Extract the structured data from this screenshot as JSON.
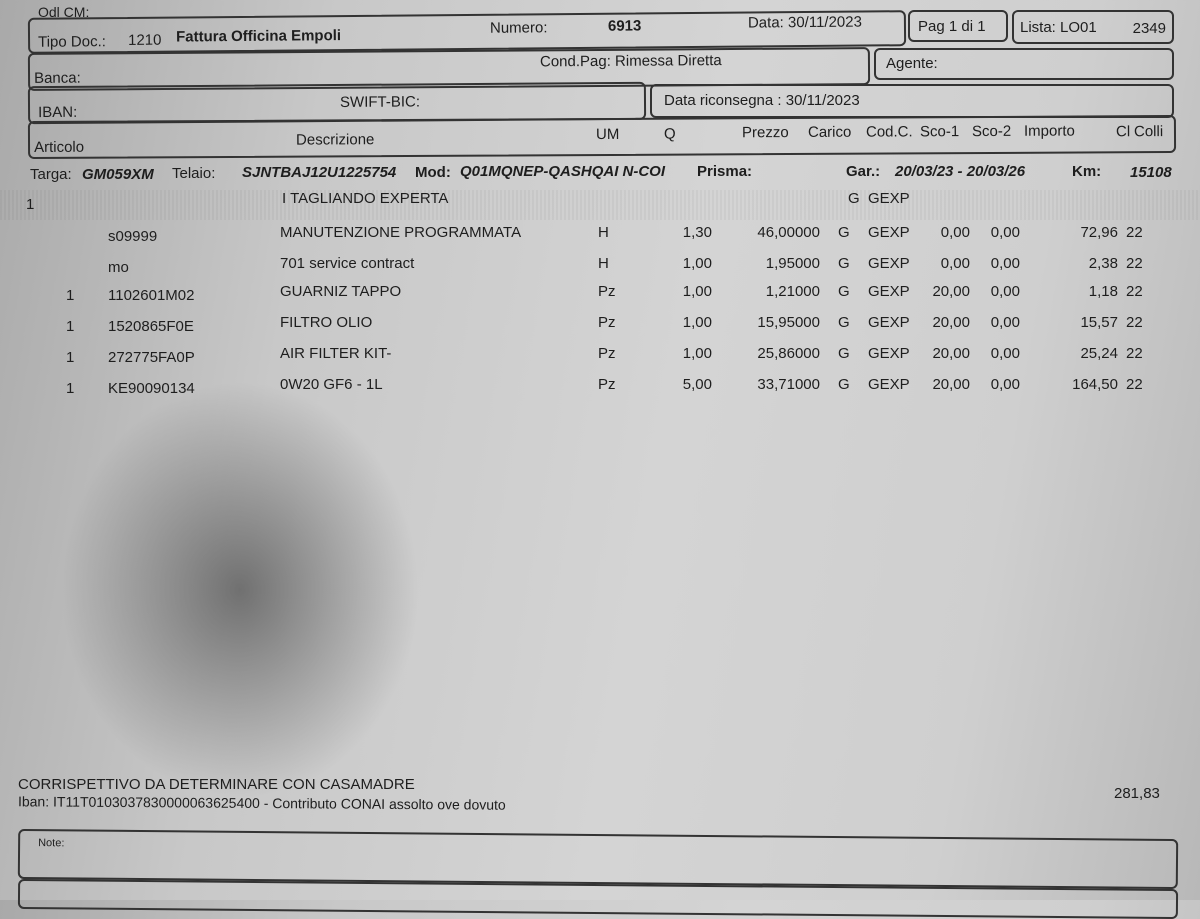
{
  "header": {
    "odl_label": "Odl CM:",
    "tipo_doc_label": "Tipo Doc.:",
    "tipo_doc_code": "1210",
    "tipo_doc_name": "Fattura Officina Empoli",
    "numero_label": "Numero:",
    "numero": "6913",
    "data": "Data: 30/11/2023",
    "pagina": "Pag 1 di 1",
    "lista_label": "Lista: LO01",
    "lista_num": "2349",
    "banca_label": "Banca:",
    "cond_pag": "Cond.Pag: Rimessa Diretta",
    "agente_label": "Agente:",
    "iban_label": "IBAN:",
    "swift_label": "SWIFT-BIC:",
    "data_riconsegna": "Data riconsegna : 30/11/2023"
  },
  "columns": [
    "Articolo",
    "Descrizione",
    "UM",
    "Q",
    "Prezzo",
    "Carico",
    "Cod.C.",
    "Sco-1",
    "Sco-2",
    "Importo",
    "Cl",
    "Colli"
  ],
  "vehicle": {
    "targa_label": "Targa:",
    "targa": "GM059XM",
    "telaio_label": "Telaio:",
    "telaio": "SJNTBAJ12U1225754",
    "mod_label": "Mod:",
    "mod": "Q01MQNEP-QASHQAI N-COI",
    "prisma_label": "Prisma:",
    "gar_label": "Gar.:",
    "gar": "20/03/23 - 20/03/26",
    "km_label": "Km:",
    "km": "15108"
  },
  "group": {
    "num": "1",
    "descr": "I TAGLIANDO EXPERTA",
    "carico": "G",
    "codc": "GEXP"
  },
  "rows": [
    {
      "n": "",
      "art": "s09999",
      "descr": "MANUTENZIONE PROGRAMMATA",
      "um": "H",
      "q": "1,30",
      "prezzo": "46,00000",
      "carico": "G",
      "codc": "GEXP",
      "sco1": "0,00",
      "sco2": "0,00",
      "importo": "72,96",
      "cl": "22"
    },
    {
      "n": "",
      "art": "mo",
      "descr": "701 service contract",
      "um": "H",
      "q": "1,00",
      "prezzo": "1,95000",
      "carico": "G",
      "codc": "GEXP",
      "sco1": "0,00",
      "sco2": "0,00",
      "importo": "2,38",
      "cl": "22"
    },
    {
      "n": "1",
      "art": "1102601M02",
      "descr": "GUARNIZ TAPPO",
      "um": "Pz",
      "q": "1,00",
      "prezzo": "1,21000",
      "carico": "G",
      "codc": "GEXP",
      "sco1": "20,00",
      "sco2": "0,00",
      "importo": "1,18",
      "cl": "22"
    },
    {
      "n": "1",
      "art": "1520865F0E",
      "descr": "FILTRO OLIO",
      "um": "Pz",
      "q": "1,00",
      "prezzo": "15,95000",
      "carico": "G",
      "codc": "GEXP",
      "sco1": "20,00",
      "sco2": "0,00",
      "importo": "15,57",
      "cl": "22"
    },
    {
      "n": "1",
      "art": "272775FA0P",
      "descr": "AIR FILTER KIT-",
      "um": "Pz",
      "q": "1,00",
      "prezzo": "25,86000",
      "carico": "G",
      "codc": "GEXP",
      "sco1": "20,00",
      "sco2": "0,00",
      "importo": "25,24",
      "cl": "22"
    },
    {
      "n": "1",
      "art": "KE90090134",
      "descr": "0W20 GF6 - 1L",
      "um": "Pz",
      "q": "5,00",
      "prezzo": "33,71000",
      "carico": "G",
      "codc": "GEXP",
      "sco1": "20,00",
      "sco2": "0,00",
      "importo": "164,50",
      "cl": "22"
    }
  ],
  "footer": {
    "line1": "CORRISPETTIVO DA DETERMINARE CON CASAMADRE",
    "line2": "Iban: IT11T0103037830000063625400 - Contributo CONAI assolto ove dovuto",
    "total": "281,83",
    "note_label": "Note:"
  }
}
